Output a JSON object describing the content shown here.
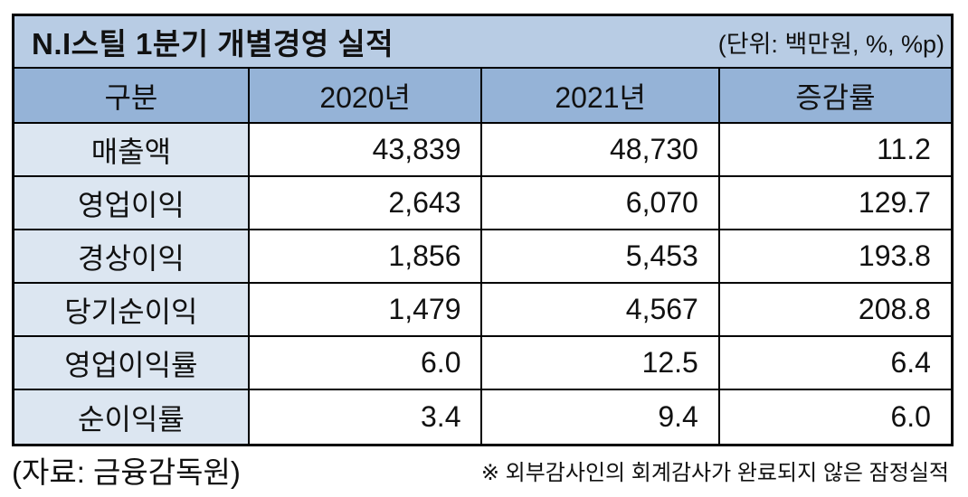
{
  "title": "N.I스틸 1분기 개별경영 실적",
  "unit_label": "(단위: 백만원, %, %p)",
  "table": {
    "headers": [
      "구분",
      "2020년",
      "2021년",
      "증감률"
    ],
    "rows": [
      {
        "label": "매출액",
        "y2020": "43,839",
        "y2021": "48,730",
        "change": "11.2"
      },
      {
        "label": "영업이익",
        "y2020": "2,643",
        "y2021": "6,070",
        "change": "129.7"
      },
      {
        "label": "경상이익",
        "y2020": "1,856",
        "y2021": "5,453",
        "change": "193.8"
      },
      {
        "label": "당기순이익",
        "y2020": "1,479",
        "y2021": "4,567",
        "change": "208.8"
      },
      {
        "label": "영업이익률",
        "y2020": "6.0",
        "y2021": "12.5",
        "change": "6.4"
      },
      {
        "label": "순이익률",
        "y2020": "3.4",
        "y2021": "9.4",
        "change": "6.0"
      }
    ]
  },
  "footer": {
    "source": "(자료: 금융감독원)",
    "note": "※ 외부감사인의 회계감사가 완료되지 않은 잠정실적"
  },
  "colors": {
    "title_bg": "#B8CCE4",
    "header_bg": "#95B3D7",
    "category_bg": "#DCE6F1",
    "border": "#000000",
    "text": "#111111"
  },
  "chart_data": {
    "type": "table",
    "title": "N.I스틸 1분기 개별경영 실적",
    "unit": "백만원, %, %p",
    "columns": [
      "구분",
      "2020년",
      "2021년",
      "증감률"
    ],
    "rows": [
      [
        "매출액",
        43839,
        48730,
        11.2
      ],
      [
        "영업이익",
        2643,
        6070,
        129.7
      ],
      [
        "경상이익",
        1856,
        5453,
        193.8
      ],
      [
        "당기순이익",
        1479,
        4567,
        208.8
      ],
      [
        "영업이익률",
        6.0,
        12.5,
        6.4
      ],
      [
        "순이익률",
        3.4,
        9.4,
        6.0
      ]
    ],
    "source": "금융감독원",
    "note": "외부감사인의 회계감사가 완료되지 않은 잠정실적"
  }
}
